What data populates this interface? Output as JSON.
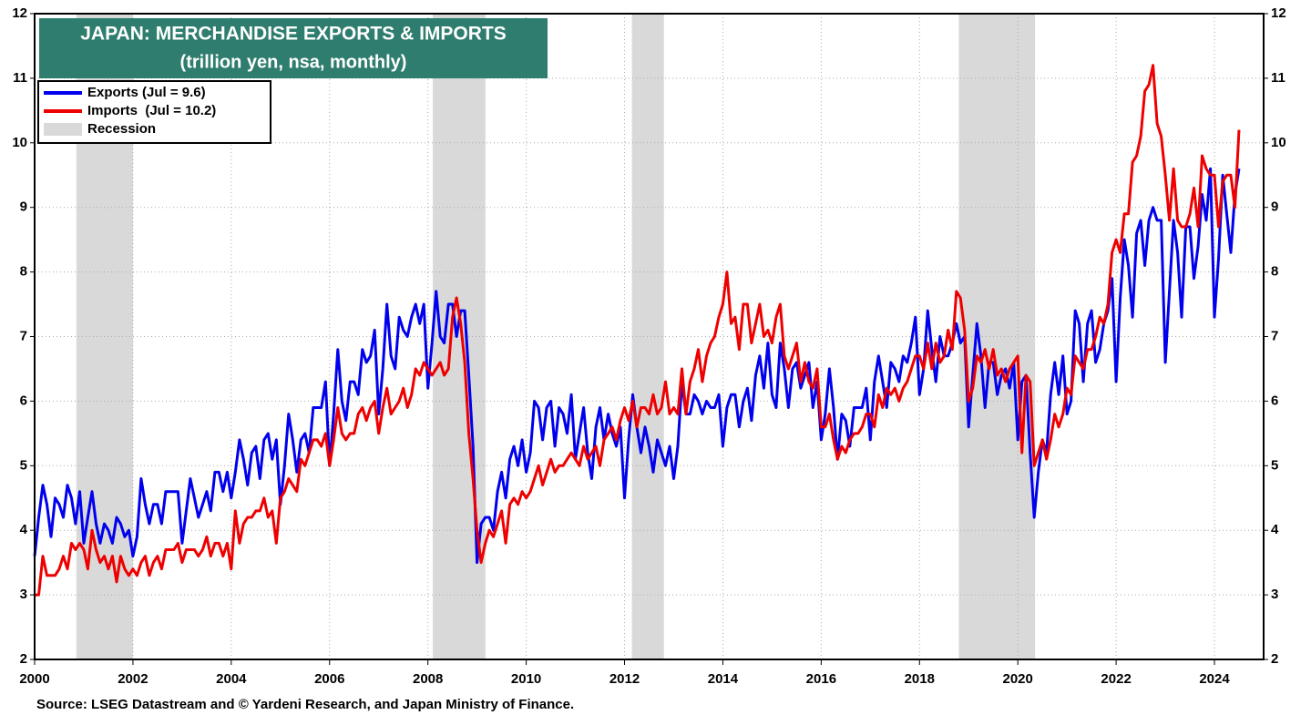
{
  "chart_data": {
    "type": "line",
    "title": "JAPAN: MERCHANDISE EXPORTS & IMPORTS",
    "subtitle": "(trillion yen, nsa, monthly)",
    "source": "Source: LSEG Datastream and © Yardeni Research, and Japan Ministry of Finance.",
    "xlim": [
      2000,
      2025
    ],
    "xticks": [
      2000,
      2002,
      2004,
      2006,
      2008,
      2010,
      2012,
      2014,
      2016,
      2018,
      2020,
      2022,
      2024
    ],
    "ylim": [
      2,
      12
    ],
    "yticks": [
      2,
      3,
      4,
      5,
      6,
      7,
      8,
      9,
      10,
      11,
      12
    ],
    "grid": true,
    "recession_label": "Recession",
    "recession_color": "#d9d9d9",
    "recessions": [
      [
        2000.85,
        2002.0
      ],
      [
        2008.1,
        2009.17
      ],
      [
        2012.15,
        2012.8
      ],
      [
        2018.8,
        2020.35
      ]
    ],
    "x": [
      2000,
      2000.083,
      2000.167,
      2000.25,
      2000.333,
      2000.417,
      2000.5,
      2000.583,
      2000.667,
      2000.75,
      2000.833,
      2000.917,
      2001,
      2001.083,
      2001.167,
      2001.25,
      2001.333,
      2001.417,
      2001.5,
      2001.583,
      2001.667,
      2001.75,
      2001.833,
      2001.917,
      2002,
      2002.083,
      2002.167,
      2002.25,
      2002.333,
      2002.417,
      2002.5,
      2002.583,
      2002.667,
      2002.75,
      2002.833,
      2002.917,
      2003,
      2003.083,
      2003.167,
      2003.25,
      2003.333,
      2003.417,
      2003.5,
      2003.583,
      2003.667,
      2003.75,
      2003.833,
      2003.917,
      2004,
      2004.083,
      2004.167,
      2004.25,
      2004.333,
      2004.417,
      2004.5,
      2004.583,
      2004.667,
      2004.75,
      2004.833,
      2004.917,
      2005,
      2005.083,
      2005.167,
      2005.25,
      2005.333,
      2005.417,
      2005.5,
      2005.583,
      2005.667,
      2005.75,
      2005.833,
      2005.917,
      2006,
      2006.083,
      2006.167,
      2006.25,
      2006.333,
      2006.417,
      2006.5,
      2006.583,
      2006.667,
      2006.75,
      2006.833,
      2006.917,
      2007,
      2007.083,
      2007.167,
      2007.25,
      2007.333,
      2007.417,
      2007.5,
      2007.583,
      2007.667,
      2007.75,
      2007.833,
      2007.917,
      2008,
      2008.083,
      2008.167,
      2008.25,
      2008.333,
      2008.417,
      2008.5,
      2008.583,
      2008.667,
      2008.75,
      2008.833,
      2008.917,
      2009,
      2009.083,
      2009.167,
      2009.25,
      2009.333,
      2009.417,
      2009.5,
      2009.583,
      2009.667,
      2009.75,
      2009.833,
      2009.917,
      2010,
      2010.083,
      2010.167,
      2010.25,
      2010.333,
      2010.417,
      2010.5,
      2010.583,
      2010.667,
      2010.75,
      2010.833,
      2010.917,
      2011,
      2011.083,
      2011.167,
      2011.25,
      2011.333,
      2011.417,
      2011.5,
      2011.583,
      2011.667,
      2011.75,
      2011.833,
      2011.917,
      2012,
      2012.083,
      2012.167,
      2012.25,
      2012.333,
      2012.417,
      2012.5,
      2012.583,
      2012.667,
      2012.75,
      2012.833,
      2012.917,
      2013,
      2013.083,
      2013.167,
      2013.25,
      2013.333,
      2013.417,
      2013.5,
      2013.583,
      2013.667,
      2013.75,
      2013.833,
      2013.917,
      2014,
      2014.083,
      2014.167,
      2014.25,
      2014.333,
      2014.417,
      2014.5,
      2014.583,
      2014.667,
      2014.75,
      2014.833,
      2014.917,
      2015,
      2015.083,
      2015.167,
      2015.25,
      2015.333,
      2015.417,
      2015.5,
      2015.583,
      2015.667,
      2015.75,
      2015.833,
      2015.917,
      2016,
      2016.083,
      2016.167,
      2016.25,
      2016.333,
      2016.417,
      2016.5,
      2016.583,
      2016.667,
      2016.75,
      2016.833,
      2016.917,
      2017,
      2017.083,
      2017.167,
      2017.25,
      2017.333,
      2017.417,
      2017.5,
      2017.583,
      2017.667,
      2017.75,
      2017.833,
      2017.917,
      2018,
      2018.083,
      2018.167,
      2018.25,
      2018.333,
      2018.417,
      2018.5,
      2018.583,
      2018.667,
      2018.75,
      2018.833,
      2018.917,
      2019,
      2019.083,
      2019.167,
      2019.25,
      2019.333,
      2019.417,
      2019.5,
      2019.583,
      2019.667,
      2019.75,
      2019.833,
      2019.917,
      2020,
      2020.083,
      2020.167,
      2020.25,
      2020.333,
      2020.417,
      2020.5,
      2020.583,
      2020.667,
      2020.75,
      2020.833,
      2020.917,
      2021,
      2021.083,
      2021.167,
      2021.25,
      2021.333,
      2021.417,
      2021.5,
      2021.583,
      2021.667,
      2021.75,
      2021.833,
      2021.917,
      2022,
      2022.083,
      2022.167,
      2022.25,
      2022.333,
      2022.417,
      2022.5,
      2022.583,
      2022.667,
      2022.75,
      2022.833,
      2022.917,
      2023,
      2023.083,
      2023.167,
      2023.25,
      2023.333,
      2023.417,
      2023.5,
      2023.583,
      2023.667,
      2023.75,
      2023.833,
      2023.917,
      2024,
      2024.083,
      2024.167,
      2024.25,
      2024.333,
      2024.417,
      2024.5
    ],
    "series": [
      {
        "name": "Exports (Jul = 9.6)",
        "color": "#0000ee",
        "values": [
          3.6,
          4.2,
          4.7,
          4.4,
          3.9,
          4.5,
          4.4,
          4.2,
          4.7,
          4.5,
          4.1,
          4.6,
          3.8,
          4.2,
          4.6,
          4.1,
          3.8,
          4.1,
          4.0,
          3.8,
          4.2,
          4.1,
          3.9,
          4.0,
          3.6,
          3.9,
          4.8,
          4.4,
          4.1,
          4.4,
          4.4,
          4.1,
          4.6,
          4.6,
          4.6,
          4.6,
          3.8,
          4.3,
          4.8,
          4.5,
          4.2,
          4.4,
          4.6,
          4.3,
          4.9,
          4.9,
          4.6,
          4.9,
          4.5,
          4.9,
          5.4,
          5.1,
          4.7,
          5.2,
          5.3,
          4.8,
          5.4,
          5.5,
          5.1,
          5.4,
          4.4,
          5.0,
          5.8,
          5.4,
          4.9,
          5.4,
          5.5,
          5.2,
          5.9,
          5.9,
          5.9,
          6.3,
          5.0,
          5.8,
          6.8,
          6.0,
          5.7,
          6.3,
          6.3,
          6.1,
          6.8,
          6.6,
          6.7,
          7.1,
          5.8,
          6.5,
          7.5,
          6.7,
          6.5,
          7.3,
          7.1,
          7.0,
          7.3,
          7.5,
          7.2,
          7.5,
          6.2,
          6.9,
          7.7,
          7.0,
          6.9,
          7.5,
          7.5,
          7.0,
          7.4,
          7.4,
          6.4,
          5.3,
          3.5,
          4.1,
          4.2,
          4.2,
          4.0,
          4.6,
          4.9,
          4.5,
          5.1,
          5.3,
          5.0,
          5.4,
          4.9,
          5.2,
          6.0,
          5.9,
          5.4,
          5.9,
          6.0,
          5.3,
          5.9,
          5.8,
          5.5,
          6.1,
          5.1,
          5.5,
          5.9,
          5.2,
          4.8,
          5.6,
          5.9,
          5.4,
          5.8,
          5.5,
          5.3,
          5.6,
          4.5,
          5.4,
          6.1,
          5.6,
          5.2,
          5.6,
          5.3,
          4.9,
          5.4,
          5.2,
          5.0,
          5.3,
          4.8,
          5.3,
          6.3,
          5.8,
          5.8,
          6.1,
          6.0,
          5.8,
          6.0,
          5.9,
          5.9,
          6.1,
          5.3,
          5.9,
          6.1,
          6.1,
          5.6,
          6.0,
          6.2,
          5.7,
          6.4,
          6.7,
          6.2,
          6.9,
          6.1,
          5.9,
          6.9,
          6.5,
          5.9,
          6.5,
          6.6,
          6.2,
          6.4,
          6.6,
          5.9,
          6.3,
          5.4,
          5.8,
          6.5,
          5.9,
          5.1,
          5.8,
          5.7,
          5.3,
          5.9,
          5.9,
          5.9,
          6.2,
          5.4,
          6.3,
          6.7,
          6.3,
          5.9,
          6.6,
          6.5,
          6.3,
          6.7,
          6.6,
          6.9,
          7.3,
          6.1,
          6.5,
          7.4,
          6.8,
          6.3,
          7.0,
          6.7,
          6.7,
          6.9,
          7.2,
          6.9,
          7.0,
          5.6,
          6.4,
          7.2,
          6.7,
          5.9,
          6.6,
          6.6,
          6.1,
          6.4,
          6.5,
          6.2,
          6.6,
          5.4,
          6.3,
          6.4,
          5.2,
          4.2,
          4.9,
          5.4,
          5.2,
          6.1,
          6.6,
          6.1,
          6.7,
          5.8,
          6.0,
          7.4,
          7.2,
          6.3,
          7.2,
          7.4,
          6.6,
          6.8,
          7.2,
          7.4,
          7.9,
          6.3,
          7.6,
          8.5,
          8.1,
          7.3,
          8.6,
          8.8,
          8.1,
          8.8,
          9.0,
          8.8,
          8.8,
          6.6,
          7.7,
          8.8,
          8.3,
          7.3,
          8.7,
          8.7,
          7.9,
          8.4,
          9.2,
          8.8,
          9.6,
          7.3,
          8.2,
          9.5,
          8.9,
          8.3,
          9.2,
          9.6
        ]
      },
      {
        "name": "Imports  (Jul = 10.2)",
        "color": "#ee0000",
        "values": [
          3.0,
          3.0,
          3.6,
          3.3,
          3.3,
          3.3,
          3.4,
          3.6,
          3.4,
          3.8,
          3.7,
          3.8,
          3.7,
          3.4,
          4.0,
          3.7,
          3.5,
          3.6,
          3.4,
          3.6,
          3.2,
          3.6,
          3.4,
          3.3,
          3.4,
          3.3,
          3.5,
          3.6,
          3.3,
          3.5,
          3.6,
          3.4,
          3.7,
          3.7,
          3.7,
          3.8,
          3.5,
          3.7,
          3.7,
          3.7,
          3.6,
          3.7,
          3.9,
          3.6,
          3.8,
          3.8,
          3.6,
          3.8,
          3.4,
          4.3,
          3.8,
          4.1,
          4.2,
          4.2,
          4.3,
          4.3,
          4.5,
          4.2,
          4.3,
          3.8,
          4.5,
          4.6,
          4.8,
          4.7,
          4.6,
          5.1,
          5.0,
          5.2,
          5.4,
          5.4,
          5.3,
          5.5,
          5.0,
          5.4,
          5.9,
          5.5,
          5.4,
          5.5,
          5.5,
          5.8,
          5.9,
          5.7,
          5.9,
          6.0,
          5.5,
          5.9,
          6.2,
          5.8,
          5.9,
          6.0,
          6.2,
          5.9,
          6.1,
          6.5,
          6.4,
          6.6,
          6.5,
          6.4,
          6.5,
          6.6,
          6.4,
          6.5,
          7.3,
          7.6,
          7.2,
          6.6,
          5.5,
          4.8,
          4.0,
          3.5,
          3.8,
          4.0,
          3.9,
          4.1,
          4.3,
          3.8,
          4.4,
          4.5,
          4.4,
          4.6,
          4.5,
          4.6,
          4.8,
          5.0,
          4.7,
          4.9,
          5.1,
          4.9,
          5.0,
          5.0,
          5.1,
          5.2,
          5.1,
          5.0,
          5.3,
          5.1,
          5.2,
          5.3,
          5.0,
          5.4,
          5.5,
          5.6,
          5.4,
          5.7,
          5.9,
          5.7,
          6.0,
          5.6,
          5.9,
          5.9,
          5.8,
          6.1,
          5.8,
          5.9,
          6.3,
          5.8,
          5.9,
          5.8,
          6.5,
          5.8,
          6.3,
          6.5,
          6.8,
          6.3,
          6.7,
          6.9,
          7.0,
          7.3,
          7.5,
          8.0,
          7.2,
          7.3,
          6.8,
          7.5,
          7.5,
          6.9,
          7.2,
          7.5,
          7.0,
          7.1,
          6.9,
          7.3,
          7.5,
          6.7,
          6.5,
          6.7,
          6.9,
          6.3,
          6.6,
          6.3,
          6.2,
          6.5,
          5.6,
          5.6,
          5.8,
          5.4,
          5.1,
          5.3,
          5.2,
          5.4,
          5.5,
          5.5,
          5.6,
          5.8,
          5.8,
          5.6,
          6.1,
          5.9,
          6.2,
          6.1,
          6.2,
          6.0,
          6.2,
          6.3,
          6.5,
          6.7,
          6.7,
          6.5,
          6.9,
          6.5,
          6.9,
          6.6,
          6.7,
          7.1,
          6.8,
          7.7,
          7.6,
          7.1,
          6.0,
          6.2,
          6.7,
          6.6,
          6.8,
          6.5,
          6.8,
          6.4,
          6.5,
          6.3,
          6.5,
          6.6,
          6.7,
          5.2,
          6.4,
          6.3,
          5.0,
          5.2,
          5.4,
          5.1,
          5.4,
          5.8,
          5.6,
          5.8,
          6.2,
          6.1,
          6.7,
          6.6,
          6.5,
          6.8,
          6.8,
          7.0,
          7.3,
          7.2,
          7.5,
          8.3,
          8.5,
          8.3,
          8.9,
          8.9,
          9.7,
          9.8,
          10.1,
          10.8,
          10.9,
          11.2,
          10.3,
          10.1,
          9.5,
          8.8,
          9.6,
          8.8,
          8.7,
          8.7,
          8.9,
          9.3,
          8.7,
          9.8,
          9.6,
          9.5,
          9.5,
          8.7,
          9.4,
          9.5,
          9.5,
          9.0,
          10.2
        ]
      }
    ]
  }
}
